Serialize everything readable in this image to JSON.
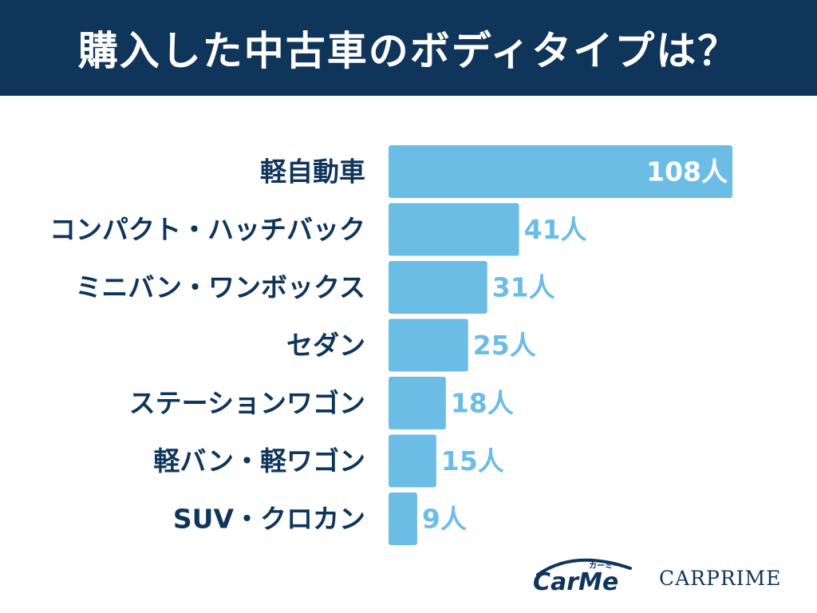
{
  "title": "購入した中古車のボディタイプは？",
  "colors": {
    "header_bg": "#0f355a",
    "bar": "#6cbde5",
    "category_text": "#0f355a",
    "value_label": "#6cbde5",
    "value_label_inside": "#ffffff"
  },
  "chart_data": {
    "type": "bar",
    "orientation": "horizontal",
    "categories": [
      "軽自動車",
      "コンパクト・ハッチバック",
      "ミニバン・ワンボックス",
      "セダン",
      "ステーションワゴン",
      "軽バン・軽ワゴン",
      "SUV・クロカン"
    ],
    "values": [
      108,
      41,
      31,
      25,
      18,
      15,
      9
    ],
    "value_labels": [
      "108人",
      "41人",
      "31人",
      "25人",
      "18人",
      "15人",
      "9人"
    ],
    "unit": "人",
    "xlim": [
      0,
      108
    ],
    "grid": false,
    "legend": "none"
  },
  "logos": {
    "carme_text": "CarMe",
    "carme_kana": "カーミー",
    "carprime_text": "CARPRIME"
  }
}
